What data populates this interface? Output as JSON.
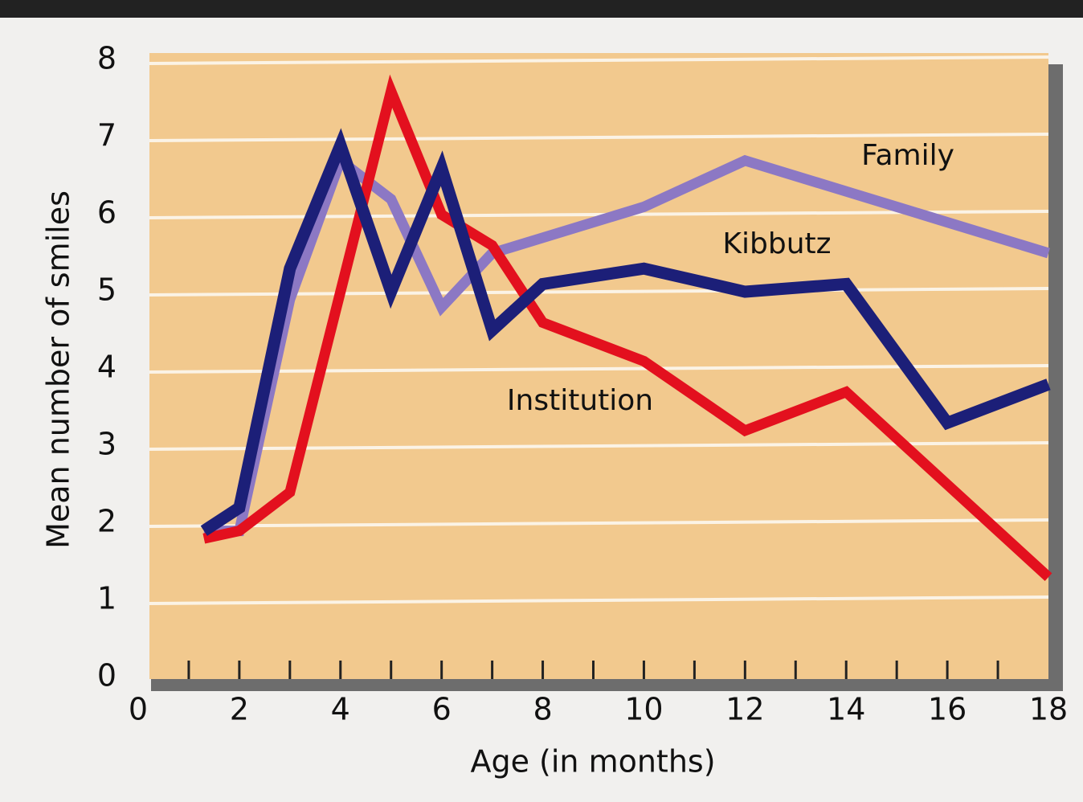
{
  "chart_data": {
    "type": "line",
    "x_label": "Age (in months)",
    "y_label": "Mean number of smiles",
    "xlim": [
      0,
      18
    ],
    "ylim": [
      0,
      8
    ],
    "xticks": [
      0,
      2,
      4,
      6,
      8,
      10,
      12,
      14,
      16,
      18
    ],
    "x_minor_ticks": [
      1,
      2,
      3,
      4,
      5,
      6,
      7,
      8,
      9,
      10,
      11,
      12,
      13,
      14,
      15,
      16,
      17
    ],
    "yticks": [
      0,
      1,
      2,
      3,
      4,
      5,
      6,
      7,
      8
    ],
    "grid": true,
    "x": [
      1.3,
      2,
      3,
      4,
      5,
      6,
      7,
      8,
      10,
      12,
      14,
      16,
      18
    ],
    "series": [
      {
        "name": "Family",
        "color": "#8c78c4",
        "values": [
          1.9,
          1.9,
          4.9,
          6.7,
          6.2,
          4.8,
          5.5,
          5.7,
          6.1,
          6.7,
          6.3,
          5.9,
          5.5
        ]
      },
      {
        "name": "Institution",
        "color": "#e3101e",
        "values": [
          1.8,
          1.9,
          2.4,
          5.0,
          7.6,
          6.0,
          5.6,
          4.6,
          4.1,
          3.2,
          3.7,
          2.5,
          1.3
        ]
      },
      {
        "name": "Kibbutz",
        "color": "#1c1f78",
        "values": [
          1.9,
          2.2,
          5.3,
          6.9,
          5.0,
          6.6,
          4.5,
          5.1,
          5.3,
          5.0,
          5.1,
          3.3,
          3.8
        ]
      }
    ]
  }
}
